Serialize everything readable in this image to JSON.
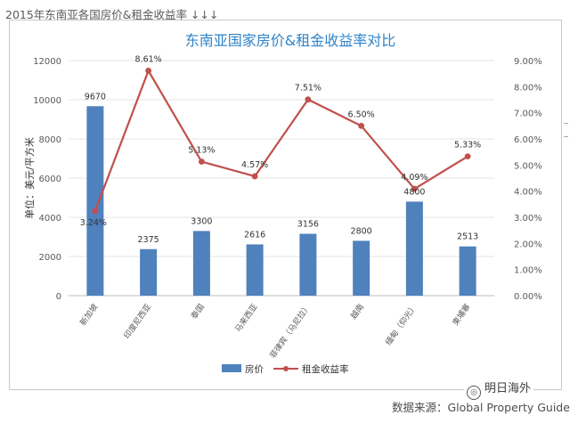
{
  "page": {
    "caption": "2015年东南亚各国房价&租金收益率 ↓↓↓",
    "source": "数据来源：Global Property Guide",
    "watermark": "明日海外"
  },
  "colors": {
    "bar": "#4f81bd",
    "line": "#c0504d",
    "title": "#2e83c8",
    "axis_text": "#595959",
    "gridline": "#e4e4e4"
  },
  "chart_data": {
    "type": "bar",
    "title": "东南亚国家房价&租金收益率对比",
    "ylabel": "单位：美元/平方米",
    "y2label": "",
    "categories": [
      "新加坡",
      "印度尼西亚",
      "泰国",
      "马来西亚",
      "菲律宾（马尼拉）",
      "越南",
      "缅甸（仰光）",
      "柬埔寨"
    ],
    "ylim": [
      0,
      12000
    ],
    "yticks": [
      0,
      2000,
      4000,
      6000,
      8000,
      10000,
      12000
    ],
    "y2lim": [
      0,
      9
    ],
    "y2ticks": [
      "0.00%",
      "1.00%",
      "2.00%",
      "3.00%",
      "4.00%",
      "5.00%",
      "6.00%",
      "7.00%",
      "8.00%",
      "9.00%"
    ],
    "grid": true,
    "legend_position": "bottom",
    "series": [
      {
        "name": "房价",
        "type": "bar",
        "axis": "left",
        "values": [
          9670,
          2375,
          3300,
          2616,
          3156,
          2800,
          4800,
          2513
        ],
        "labels": [
          "9670",
          "2375",
          "3300",
          "2616",
          "3156",
          "2800",
          "4800",
          "2513"
        ]
      },
      {
        "name": "租金收益率",
        "type": "line",
        "axis": "right",
        "values": [
          3.24,
          8.61,
          5.13,
          4.57,
          7.51,
          6.5,
          4.09,
          5.33
        ],
        "labels": [
          "3.24%",
          "8.61%",
          "5.13%",
          "4.57%",
          "7.51%",
          "6.50%",
          "4.09%",
          "5.33%"
        ]
      }
    ]
  }
}
